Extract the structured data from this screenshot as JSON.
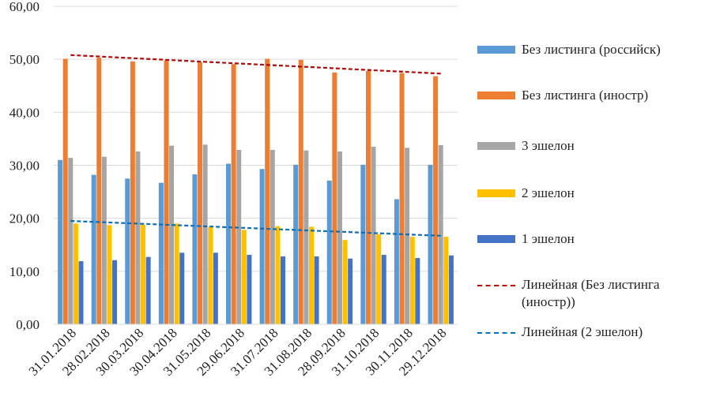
{
  "chart_data": {
    "type": "bar",
    "categories": [
      "31.01.2018",
      "28.02.2018",
      "30.03.2018",
      "30.04.2018",
      "31.05.2018",
      "29.06.2018",
      "31.07.2018",
      "31.08.2018",
      "28.09.2018",
      "31.10.2018",
      "30.11.2018",
      "29.12.2018"
    ],
    "ylim": [
      0,
      60
    ],
    "yticks": [
      "0,00",
      "10,00",
      "20,00",
      "30,00",
      "40,00",
      "50,00",
      "60,00"
    ],
    "series": [
      {
        "name": "Без листинга (российск)",
        "color": "#5b9bd5",
        "values": [
          31.0,
          28.2,
          27.5,
          26.7,
          28.3,
          30.3,
          29.3,
          30.1,
          27.1,
          30.1,
          23.6,
          30.1
        ]
      },
      {
        "name": "Без листинга (иностр)",
        "color": "#ed7d31",
        "values": [
          50.1,
          50.3,
          49.6,
          49.8,
          49.5,
          49.1,
          50.1,
          49.9,
          47.5,
          47.8,
          47.4,
          46.8
        ]
      },
      {
        "name": "3 эшелон",
        "color": "#a5a5a5",
        "values": [
          31.4,
          31.6,
          32.6,
          33.7,
          33.9,
          32.9,
          32.9,
          32.8,
          32.6,
          33.5,
          33.3,
          33.8
        ]
      },
      {
        "name": "2 эшелон",
        "color": "#ffc000",
        "values": [
          19.0,
          18.7,
          18.8,
          19.0,
          18.4,
          17.8,
          18.5,
          18.4,
          15.9,
          17.0,
          16.5,
          16.5
        ]
      },
      {
        "name": "1 эшелон",
        "color": "#4472c4",
        "values": [
          11.9,
          12.1,
          12.7,
          13.5,
          13.5,
          13.1,
          12.8,
          12.8,
          12.4,
          13.1,
          12.5,
          13.0
        ]
      }
    ],
    "trendlines": [
      {
        "name": "Линейная (Без листинга\n(иностр))",
        "color": "#c00000",
        "start": 50.8,
        "end": 47.3
      },
      {
        "name": "Линейная (2 эшелон)",
        "color": "#0070c0",
        "start": 19.5,
        "end": 16.7
      }
    ],
    "legend_position": "right"
  }
}
